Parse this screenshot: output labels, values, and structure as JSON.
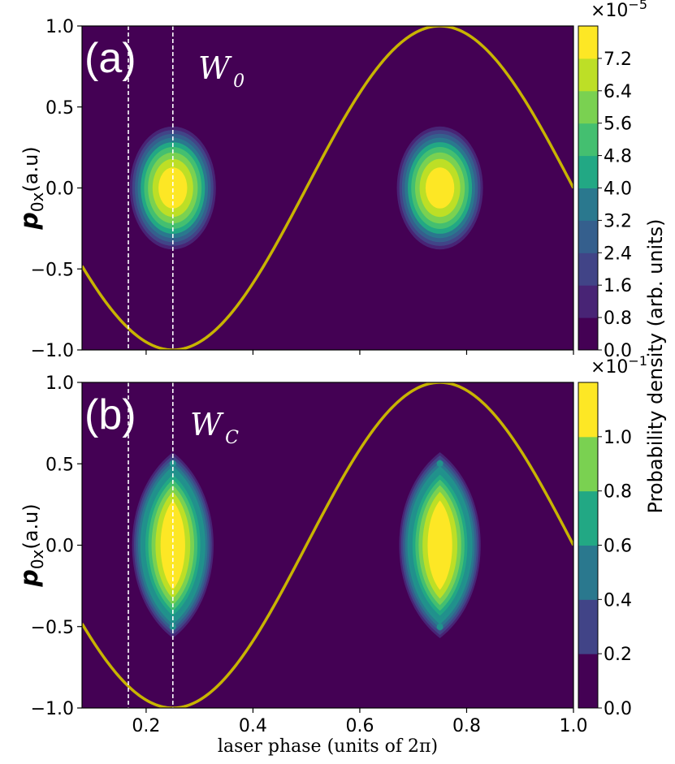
{
  "chart_data": [
    {
      "type": "contour",
      "panel_label": "(a)",
      "title": "W",
      "title_subscript": "0",
      "xlabel": "laser phase (units of 2π)",
      "ylabel": "p0x(a.u)",
      "ylabel_main": "p",
      "ylabel_sub": "0x",
      "ylabel_unit": "(a.u)",
      "xlim": [
        0.08,
        1.0
      ],
      "ylim": [
        -1.0,
        1.0
      ],
      "yticks": [
        "−1.0",
        "−0.5",
        "0.0",
        "0.5",
        "1.0"
      ],
      "yticks_values": [
        -1.0,
        -0.5,
        0.0,
        0.5,
        1.0
      ],
      "xticks_values": [
        0.2,
        0.4,
        0.6,
        0.8,
        1.0
      ],
      "peaks": [
        {
          "x": 0.25,
          "y": 0.0
        },
        {
          "x": 0.75,
          "y": 0.0
        }
      ],
      "peak_shape": "ellipse",
      "peak_half_width_x": 0.085,
      "peak_half_width_y": 0.4,
      "curve": {
        "name": "-sin(2π·phase)",
        "amplitude": 1.0
      },
      "vlines": [
        0.1667,
        0.25
      ],
      "colorbar": {
        "label": "Probability density (arb. units)",
        "scale": "×10",
        "scale_exponent": "−5",
        "ticks": [
          "0.0",
          "0.8",
          "1.6",
          "2.4",
          "3.2",
          "4.0",
          "4.8",
          "5.6",
          "6.4",
          "7.2"
        ],
        "levels": 10
      }
    },
    {
      "type": "contour",
      "panel_label": "(b)",
      "title": "W",
      "title_subscript": "C",
      "xlabel": "laser phase (units of 2π)",
      "ylabel": "p0x(a.u)",
      "ylabel_main": "p",
      "ylabel_sub": "0x",
      "ylabel_unit": "(a.u)",
      "xlim": [
        0.08,
        1.0
      ],
      "ylim": [
        -1.0,
        1.0
      ],
      "yticks": [
        "−1.0",
        "−0.5",
        "0.0",
        "0.5",
        "1.0"
      ],
      "yticks_values": [
        -1.0,
        -0.5,
        0.0,
        0.5,
        1.0
      ],
      "xticks": [
        "0.2",
        "0.4",
        "0.6",
        "0.8",
        "1.0"
      ],
      "xticks_values": [
        0.2,
        0.4,
        0.6,
        0.8,
        1.0
      ],
      "peaks": [
        {
          "x": 0.25,
          "y": 0.0
        },
        {
          "x": 0.75,
          "y": 0.0
        }
      ],
      "peak_shape": "lens",
      "peak_half_width_x": 0.085,
      "peak_half_width_y": 0.59,
      "curve": {
        "name": "-sin(2π·phase)",
        "amplitude": 1.0
      },
      "vlines": [
        0.1667,
        0.25
      ],
      "colorbar": {
        "label": "Probability density (arb. units)",
        "scale": "×10",
        "scale_exponent": "−1",
        "ticks": [
          "0.0",
          "0.2",
          "0.4",
          "0.6",
          "0.8",
          "1.0"
        ],
        "levels": 12
      }
    }
  ],
  "colors": {
    "viridis": [
      "#440154",
      "#482475",
      "#414487",
      "#355f8d",
      "#2a788e",
      "#21918c",
      "#22a884",
      "#44bf70",
      "#7ad151",
      "#bddf26",
      "#fde725"
    ],
    "curve": "#c8b400",
    "vline": "#ffffff",
    "panel_text": "#ffffff"
  }
}
